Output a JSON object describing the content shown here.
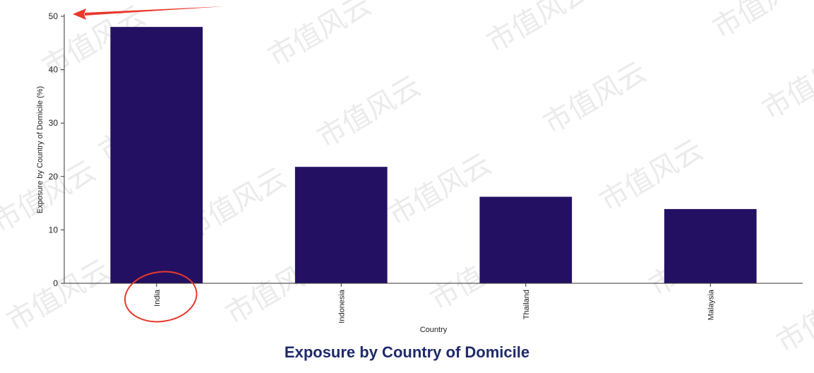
{
  "colors": {
    "bar": "#241063",
    "axis": "#333333",
    "title": "#1f2a6b",
    "annotation": "#e8392b",
    "watermark": "#ebebeb"
  },
  "watermark": {
    "text": "市值风云"
  },
  "annotations": [
    {
      "type": "arrow",
      "color": "annotation",
      "target": "y-tick-50"
    },
    {
      "type": "ellipse",
      "color": "annotation",
      "target": "category-India"
    }
  ],
  "chart_data": {
    "type": "bar",
    "title": "Exposure by Country of Domicile",
    "xlabel": "Country",
    "ylabel": "Exposure by Country of Domicile (%)",
    "categories": [
      "India",
      "Indonesia",
      "Thailand",
      "Malaysia"
    ],
    "values": [
      48,
      21.8,
      16.2,
      13.9
    ],
    "ylim": [
      0,
      50
    ],
    "yticks": [
      0,
      10,
      20,
      30,
      40,
      50
    ],
    "grid": false,
    "legend": "none"
  }
}
